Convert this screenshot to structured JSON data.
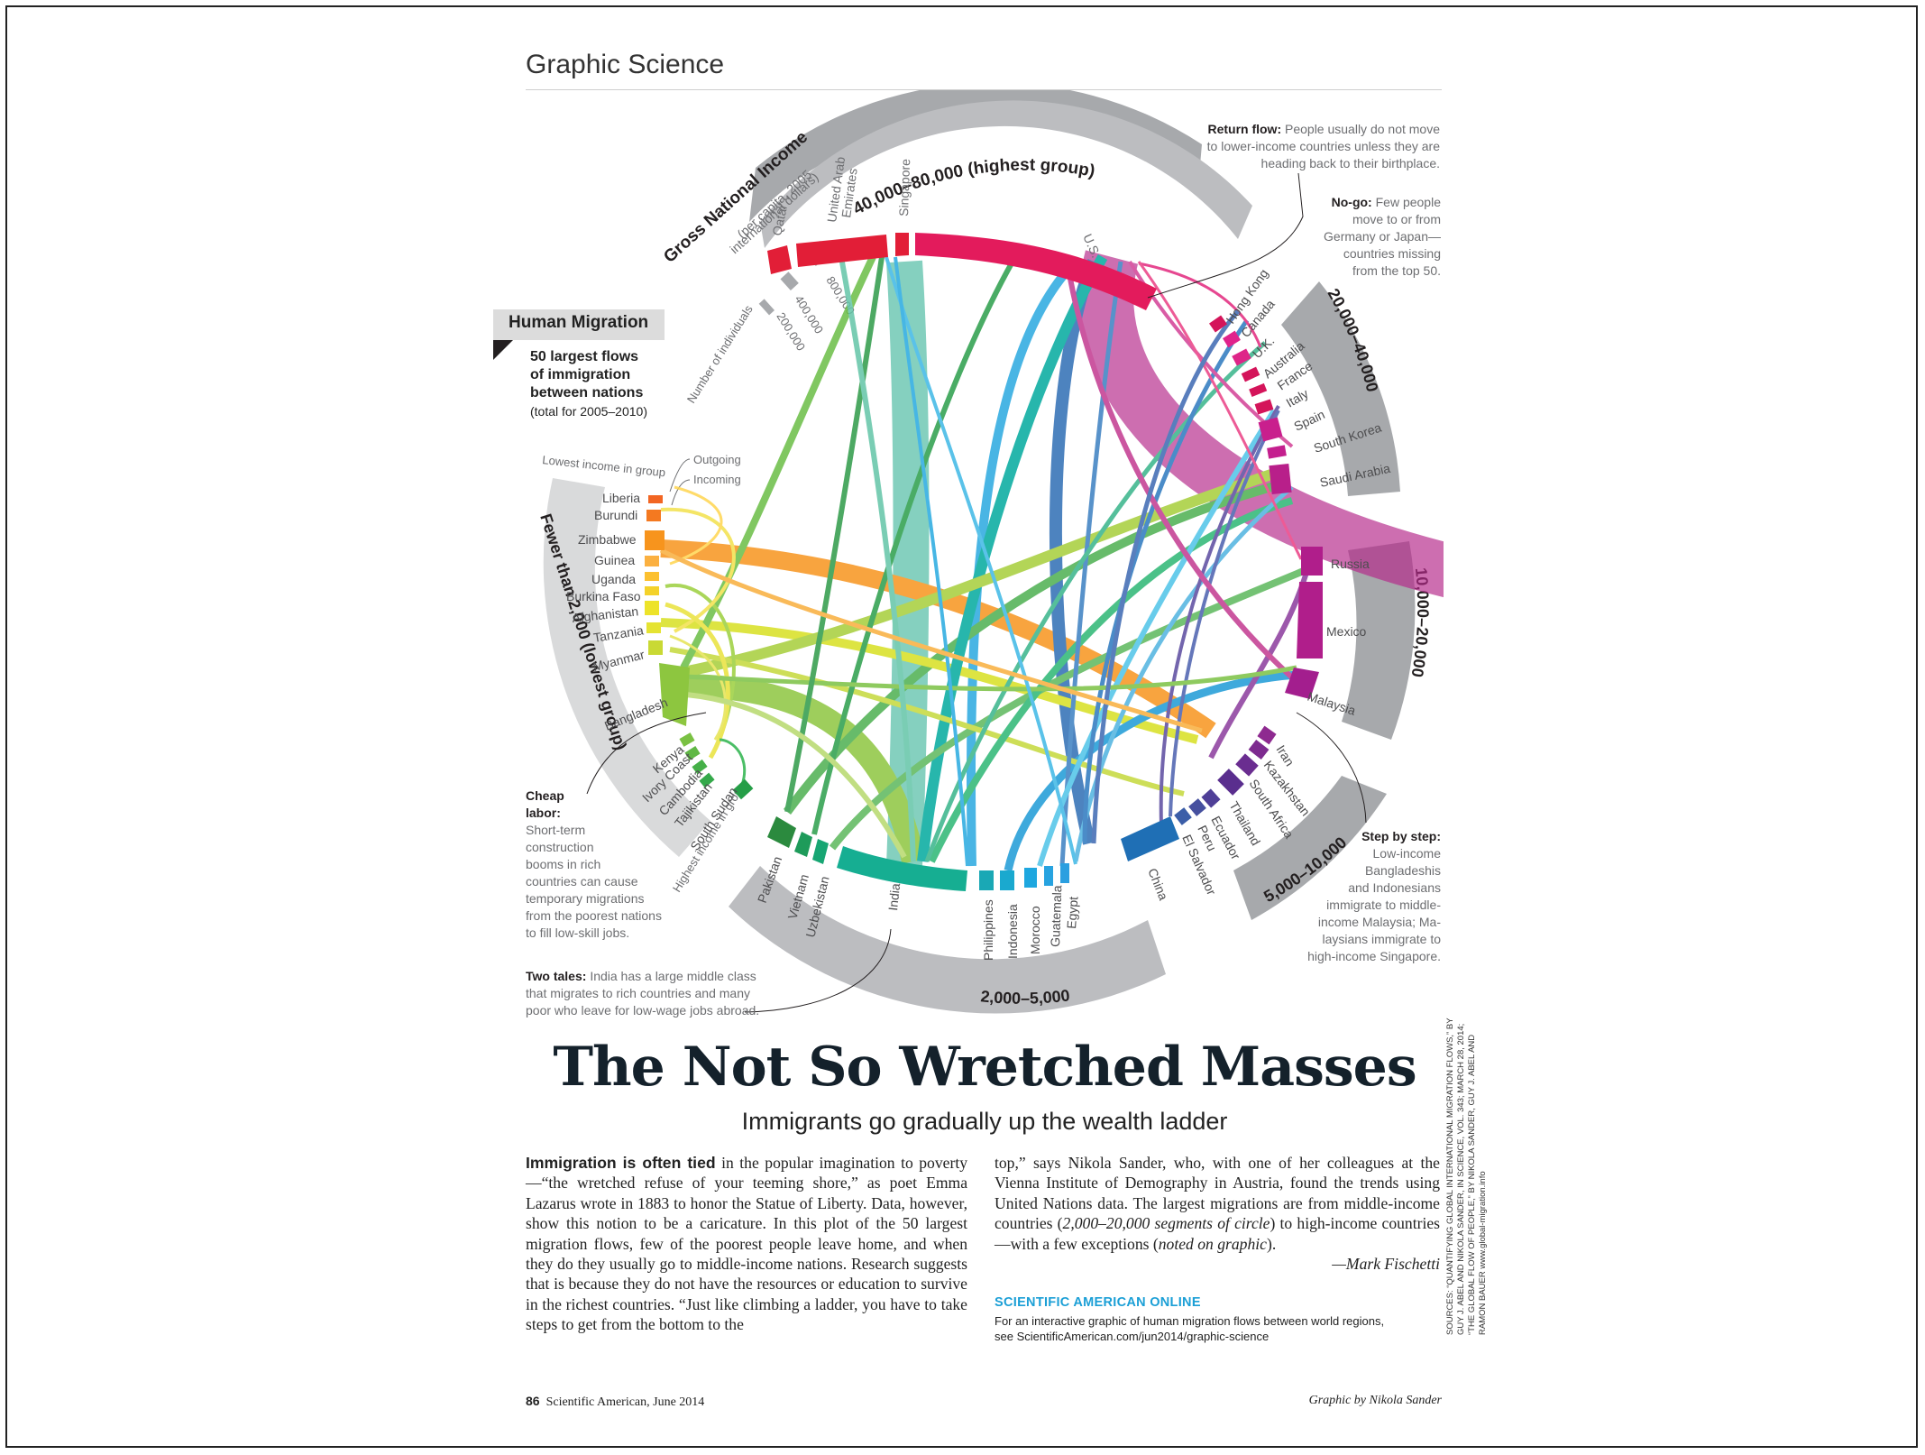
{
  "section_title": "Graphic Science",
  "human_migration": {
    "tag": "Human Migration",
    "desc_lines": [
      "50 largest flows",
      "of immigration",
      "between nations"
    ],
    "desc_note": "(total for 2005–2010)"
  },
  "gni": {
    "title": "Gross National Income",
    "subtitle_1": "(per capita, 2005",
    "subtitle_2": "international dollars)"
  },
  "scale_legend": {
    "label": "Number of individuals",
    "values": [
      "200,000",
      "400,000",
      "800,000"
    ]
  },
  "legend_out_in": {
    "outgoing": "Outgoing",
    "incoming": "Incoming"
  },
  "group_labels": {
    "highest": "40,000–80,000 (highest group)",
    "g2": "20,000–40,000",
    "g3": "10,000–20,000",
    "g4": "5,000–10,000",
    "g5": "2,000–5,000",
    "lowest": "Fewer than 2,000 (lowest group)",
    "lowest_in_group": "Lowest income in group",
    "highest_in_group": "Highest income in group"
  },
  "countries": {
    "qatar": "Qatar",
    "uae_1": "United Arab",
    "uae_2": "Emirates",
    "singapore": "Singapore",
    "us": "U.S.",
    "hongkong": "Hong Kong",
    "canada": "Canada",
    "uk": "U.K.",
    "australia": "Australia",
    "france": "France",
    "italy": "Italy",
    "spain": "Spain",
    "southkorea": "South Korea",
    "saudiarabia": "Saudi Arabia",
    "russia": "Russia",
    "mexico": "Mexico",
    "malaysia": "Malaysia",
    "iran": "Iran",
    "kazakhstan": "Kazakhstan",
    "southafrica": "South Africa",
    "thailand": "Thailand",
    "ecuador": "Ecuador",
    "peru": "Peru",
    "elsalvador": "El Salvador",
    "china": "China",
    "pakistan": "Pakistan",
    "vietnam": "Vietnam",
    "uzbekistan": "Uzbekistan",
    "india": "India",
    "philippines": "Philippines",
    "indonesia": "Indonesia",
    "morocco": "Morocco",
    "guatemala": "Guatemala",
    "egypt": "Egypt",
    "liberia": "Liberia",
    "burundi": "Burundi",
    "zimbabwe": "Zimbabwe",
    "guinea": "Guinea",
    "uganda": "Uganda",
    "burkinafaso": "Burkina Faso",
    "afghanistan": "Afghanistan",
    "tanzania": "Tanzania",
    "myanmar": "Myanmar",
    "bangladesh": "Bangladesh",
    "kenya": "Kenya",
    "ivorycoast": "Ivory Coast",
    "cambodia": "Cambodia",
    "tajikistan": "Tajikistan",
    "southsudan": "South Sudan"
  },
  "notes": {
    "return_flow_title": "Return flow:",
    "return_flow_lines": [
      "People usually do not move",
      "to lower-income countries unless they are",
      "heading back to their birthplace."
    ],
    "nogo_title": "No-go:",
    "nogo_lines": [
      "Few people",
      "move to or from",
      "Germany or Japan—",
      "countries missing",
      "from the top 50."
    ],
    "cheap_title_1": "Cheap",
    "cheap_title_2": "labor:",
    "cheap_lines": [
      "Short-term",
      "construction",
      "booms in rich",
      "countries can cause",
      "temporary migrations",
      "from the poorest nations",
      "to fill low-skill jobs."
    ],
    "two_tales_title": "Two tales:",
    "two_tales_lines": [
      "India has a large middle class",
      "that migrates to rich countries and many",
      "poor who leave for low-wage jobs abroad."
    ],
    "step_title": "Step by step:",
    "step_lines": [
      "Low-income",
      "Bangladeshis",
      "and Indonesians",
      "immigrate to middle-",
      "income Malaysia; Ma-",
      "laysians immigrate to",
      "high-income Singapore."
    ]
  },
  "headline": "The Not So Wretched Masses",
  "subhead": "Immigrants go gradually up the wealth ladder",
  "body": {
    "lead": "Immigration is often tied",
    "col1": " in the popular imagination to poverty—“the wretched refuse of your teeming shore,” as poet Emma Lazarus wrote in 1883 to honor the Statue of Liberty. Data, however, show this notion to be a caricature. In this plot of the 50 largest migration flows, few of the poorest people leave home, and when they do they usually go to middle-income nations. Research suggests that is because they do not have the resources or education to survive in the richest countries. “Just like climbing a ladder, you have to take steps to get from the bottom to the",
    "col2_a": "top,” says Nikola Sander, who, with one of her colleagues at the Vienna Institute of Demography in Austria, found the trends using United Nations data. The largest migrations are from middle-income countries (",
    "col2_em1": "2,000–20,000 segments of circle",
    "col2_b": ") to high-income countries—with a few exceptions (",
    "col2_em2": "noted on graphic",
    "col2_c": ").",
    "signature": "—Mark Fischetti"
  },
  "online": {
    "label": "SCIENTIFIC AMERICAN ONLINE",
    "text_1": "For an interactive graphic of human migration flows between world regions,",
    "text_2": "see ScientificAmerican.com/jun2014/graphic-science"
  },
  "footer": {
    "page_number": "86",
    "publication": "Scientific American, June 2014",
    "credit": "Graphic by Nikola Sander"
  },
  "sources": "SOURCES: “QUANTIFYING GLOBAL INTERNATIONAL MIGRATION FLOWS,” BY GUY J. ABEL AND NIKOLA SANDER, IN SCIENCE, VOL. 343; MARCH 28, 2014; “THE GLOBAL FLOW OF PEOPLE,” BY NIKOLA SANDER, GUY J. ABEL AND RAMON BAUER www.global-migration.info",
  "colors": {
    "accent_blue": "#1b9fd6",
    "ring_gray": "#bcbdc0",
    "ring_light": "#d9dadb"
  }
}
